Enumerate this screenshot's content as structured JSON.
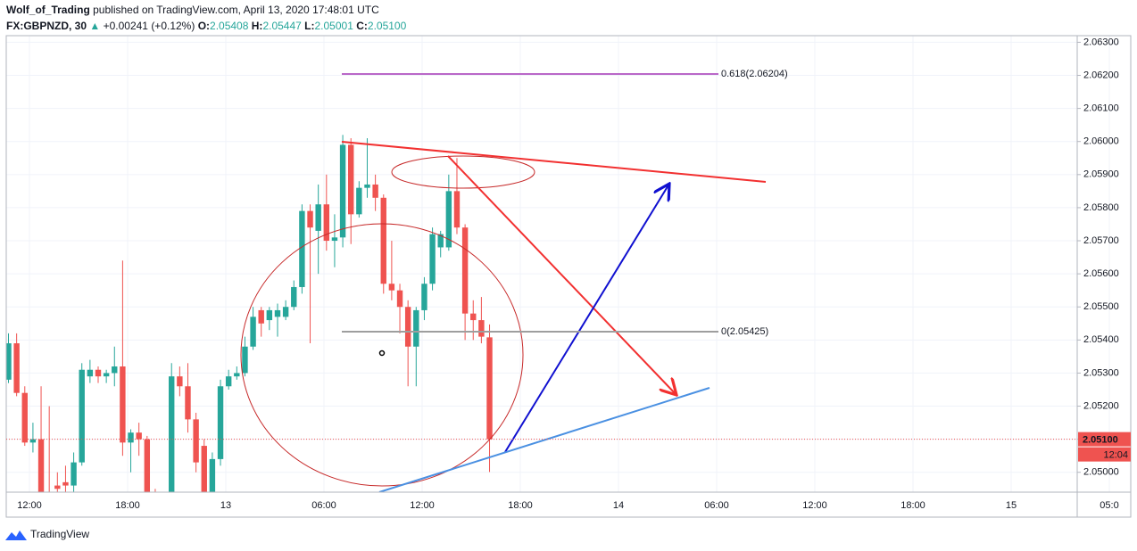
{
  "header": {
    "author": "Wolf_of_Trading",
    "published": "published on TradingView.com, April 13, 2020 17:48:01 UTC",
    "symbol": "FX:GBPNZD, 30",
    "change": "+0.00241 (+0.12%)",
    "ohlc": [
      {
        "key": "O:",
        "value": "2.05408"
      },
      {
        "key": "H:",
        "value": "2.05447"
      },
      {
        "key": "L:",
        "value": "2.05001"
      },
      {
        "key": "C:",
        "value": "2.05100"
      }
    ]
  },
  "footer": {
    "brand": "TradingView"
  },
  "chart_data": {
    "type": "candlestick",
    "up_color": "#26a69a",
    "down_color": "#ef5350",
    "grid": true,
    "ylim": [
      2.0494,
      2.0632
    ],
    "yticks": [
      {
        "value": 2.063,
        "label": "2.06300"
      },
      {
        "value": 2.062,
        "label": "2.06200"
      },
      {
        "value": 2.061,
        "label": "2.06100"
      },
      {
        "value": 2.06,
        "label": "2.06000"
      },
      {
        "value": 2.059,
        "label": "2.05900"
      },
      {
        "value": 2.058,
        "label": "2.05800"
      },
      {
        "value": 2.057,
        "label": "2.05700"
      },
      {
        "value": 2.056,
        "label": "2.05600"
      },
      {
        "value": 2.055,
        "label": "2.05500"
      },
      {
        "value": 2.054,
        "label": "2.05400"
      },
      {
        "value": 2.053,
        "label": "2.05300"
      },
      {
        "value": 2.052,
        "label": "2.05200"
      },
      {
        "value": 2.051,
        "label": "2.05100"
      },
      {
        "value": 2.05,
        "label": "2.05000"
      }
    ],
    "xtick_labels": [
      "12:00",
      "18:00",
      "13",
      "06:00",
      "12:00",
      "18:00",
      "14",
      "06:00",
      "12:00",
      "18:00",
      "15",
      "05:0"
    ],
    "ohlc": [
      [
        2.0528,
        2.0542,
        2.0527,
        2.0539
      ],
      [
        2.0539,
        2.0542,
        2.0523,
        2.0524
      ],
      [
        2.0524,
        2.0526,
        2.0508,
        2.0509
      ],
      [
        2.0509,
        2.0515,
        2.0506,
        2.051
      ],
      [
        2.051,
        2.0526,
        2.049,
        2.0492
      ],
      [
        2.0492,
        2.052,
        2.0486,
        2.0488
      ],
      [
        2.0496,
        2.05,
        2.049,
        2.0495
      ],
      [
        2.0497,
        2.0502,
        2.0494,
        2.0496
      ],
      [
        2.0496,
        2.0506,
        2.0494,
        2.0503
      ],
      [
        2.0503,
        2.0533,
        2.0502,
        2.0531
      ],
      [
        2.0529,
        2.0534,
        2.0527,
        2.0531
      ],
      [
        2.0531,
        2.0532,
        2.0527,
        2.0529
      ],
      [
        2.0529,
        2.0531,
        2.0527,
        2.053
      ],
      [
        2.053,
        2.0538,
        2.0526,
        2.0532
      ],
      [
        2.0532,
        2.0564,
        2.0505,
        2.0509
      ],
      [
        2.0509,
        2.0513,
        2.05,
        2.0512
      ],
      [
        2.0512,
        2.0515,
        2.0505,
        2.051
      ],
      [
        2.051,
        2.0511,
        2.049,
        2.0492
      ],
      [
        2.0492,
        2.0495,
        2.0486,
        2.0488
      ],
      [
        2.049,
        2.0493,
        2.0485,
        2.0487
      ],
      [
        2.049,
        2.0533,
        2.0488,
        2.0529
      ],
      [
        2.0529,
        2.0532,
        2.0523,
        2.0526
      ],
      [
        2.0526,
        2.0533,
        2.0512,
        2.0516
      ],
      [
        2.0516,
        2.0518,
        2.05,
        2.0503
      ],
      [
        2.0508,
        2.051,
        2.0492,
        2.0494
      ],
      [
        2.0494,
        2.0506,
        2.0492,
        2.0504
      ],
      [
        2.0504,
        2.0528,
        2.0502,
        2.0526
      ],
      [
        2.0526,
        2.0531,
        2.0525,
        2.0529
      ],
      [
        2.0529,
        2.0532,
        2.0528,
        2.053
      ],
      [
        2.053,
        2.0541,
        2.0529,
        2.0538
      ],
      [
        2.0538,
        2.055,
        2.0537,
        2.0547
      ],
      [
        2.0549,
        2.055,
        2.0541,
        2.0545
      ],
      [
        2.0546,
        2.055,
        2.0543,
        2.0549
      ],
      [
        2.0547,
        2.0551,
        2.0541,
        2.0549
      ],
      [
        2.0547,
        2.0552,
        2.0546,
        2.055
      ],
      [
        2.055,
        2.0558,
        2.0549,
        2.0556
      ],
      [
        2.0556,
        2.0581,
        2.0554,
        2.0579
      ],
      [
        2.0579,
        2.0581,
        2.0539,
        2.0574
      ],
      [
        2.0573,
        2.0587,
        2.056,
        2.0581
      ],
      [
        2.0581,
        2.059,
        2.0567,
        2.057
      ],
      [
        2.057,
        2.0578,
        2.0562,
        2.0571
      ],
      [
        2.0571,
        2.0602,
        2.0568,
        2.0599
      ],
      [
        2.0599,
        2.0601,
        2.0569,
        2.0578
      ],
      [
        2.0578,
        2.0588,
        2.0577,
        2.0586
      ],
      [
        2.0586,
        2.0601,
        2.0583,
        2.0587
      ],
      [
        2.0587,
        2.059,
        2.0579,
        2.0583
      ],
      [
        2.0583,
        2.0584,
        2.0554,
        2.0557
      ],
      [
        2.0557,
        2.057,
        2.0552,
        2.0555
      ],
      [
        2.0555,
        2.0557,
        2.0542,
        2.055
      ],
      [
        2.055,
        2.0552,
        2.0526,
        2.0538
      ],
      [
        2.0538,
        2.055,
        2.0526,
        2.0549
      ],
      [
        2.0549,
        2.0559,
        2.0546,
        2.0557
      ],
      [
        2.0557,
        2.0574,
        2.0555,
        2.0572
      ],
      [
        2.0568,
        2.0573,
        2.0565,
        2.0572
      ],
      [
        2.0568,
        2.059,
        2.0567,
        2.0585
      ],
      [
        2.0585,
        2.0595,
        2.0572,
        2.0574
      ],
      [
        2.0574,
        2.0575,
        2.054,
        2.0548
      ],
      [
        2.0548,
        2.0552,
        2.054,
        2.0546
      ],
      [
        2.0546,
        2.0553,
        2.0539,
        2.0541
      ],
      [
        2.05408,
        2.05447,
        2.05001,
        2.051
      ]
    ],
    "fib_levels": [
      {
        "value": 2.06204,
        "label": "0.618(2.06204)",
        "color": "#ba68c8"
      },
      {
        "value": 2.05425,
        "label": "0(2.05425)",
        "color": "#9e9e9e"
      }
    ],
    "last_price": {
      "value": 2.051,
      "label": "2.05100",
      "countdown": "12:04",
      "color": "#ef5350"
    }
  }
}
